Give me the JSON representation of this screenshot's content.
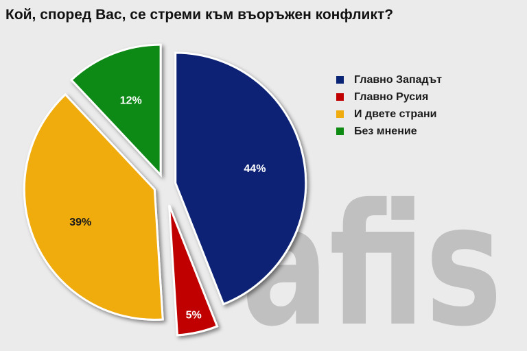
{
  "title": "Кой, според Вас, се стреми към въоръжен конфликт?",
  "logo_text": "afis",
  "chart_data": {
    "type": "pie",
    "title": "Кой, според Вас, се стреми към въоръжен конфликт?",
    "categories": [
      "Главно Западът",
      "Главно Русия",
      "И двете страни",
      "Без мнение"
    ],
    "values": [
      44,
      5,
      39,
      12
    ],
    "labels": [
      "44%",
      "5%",
      "39%",
      "12%"
    ],
    "colors": [
      "#0a2475",
      "#c00000",
      "#f0ab0e",
      "#0d8a12"
    ],
    "label_colors": [
      "#ffffff",
      "#ffffff",
      "#1a1a1a",
      "#ffffff"
    ],
    "legend_position": "right",
    "exploded": true
  }
}
